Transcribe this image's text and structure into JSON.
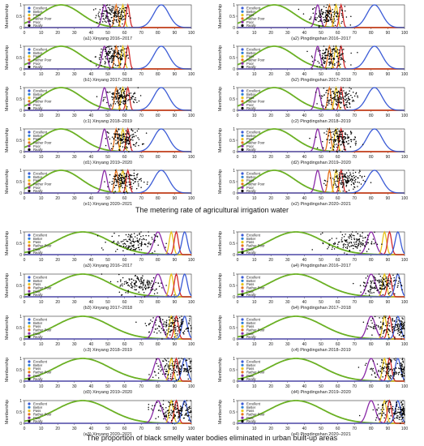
{
  "sections": [
    {
      "title": "The metering rate of agricultural irrigation water",
      "panels": [
        {
          "label": "(a1) Xinyang 2016–2017",
          "cloud": 53
        },
        {
          "label": "(a2) Pingdingshan 2016–2017",
          "cloud": 54
        },
        {
          "label": "(b1) Xinyang 2017–2018",
          "cloud": 53
        },
        {
          "label": "(b2) Pingdingshan 2017–2018",
          "cloud": 56
        },
        {
          "label": "(c1) Xinyang 2018–2019",
          "cloud": 58
        },
        {
          "label": "(c2) Pingdingshan 2018–2019",
          "cloud": 60
        },
        {
          "label": "(d1) Xinyang 2019–2020",
          "cloud": 60
        },
        {
          "label": "(d2) Pingdingshan 2019–2020",
          "cloud": 62
        },
        {
          "label": "(e1) Xinyang 2020–2021",
          "cloud": 60
        },
        {
          "label": "(e2) Pingdingshan 2020–2021",
          "cloud": 65
        }
      ]
    },
    {
      "title": "The proportion of black smelly water bodies eliminated in urban built-up areas",
      "panels": [
        {
          "label": "(a3) Xinyang 2016–2017",
          "cloud": 65
        },
        {
          "label": "(a4) Pingdingshan 2016–2017",
          "cloud": 68
        },
        {
          "label": "(b3) Xinyang 2017–2018",
          "cloud": 70
        },
        {
          "label": "(b4) Pingdingshan 2017–2018",
          "cloud": 86
        },
        {
          "label": "(c3) Xinyang 2018–2019",
          "cloud": 88
        },
        {
          "label": "(c4) Pingdingshan 2018–2019",
          "cloud": 93
        },
        {
          "label": "(d3) Xinyang 2019–2020",
          "cloud": 92
        },
        {
          "label": "(d4) Pingdingshan 2019–2020",
          "cloud": 94
        },
        {
          "label": "(e3) Xinyang 2020–2021",
          "cloud": 91
        },
        {
          "label": "(e4) Pingdingshan 2020–2021",
          "cloud": 95
        }
      ]
    }
  ],
  "chart_data": {
    "type": "line",
    "ylabel": "Membership",
    "xlim": [
      0,
      100
    ],
    "ylim": [
      0,
      1
    ],
    "x_ticks": [
      0,
      10,
      20,
      30,
      40,
      50,
      60,
      70,
      80,
      90,
      100
    ],
    "y_ticks": [
      0,
      0.5,
      1
    ],
    "legend": [
      {
        "name": "Excellent",
        "color": "#3b5bd6"
      },
      {
        "name": "Better",
        "color": "#2a7fd4"
      },
      {
        "name": "Pass",
        "color": "#e8c41a"
      },
      {
        "name": "Rather Poor",
        "color": "#e6721c"
      },
      {
        "name": "Poor",
        "color": "#8a2aa8"
      },
      {
        "name": "Really",
        "color": "#000000"
      }
    ],
    "curves": {
      "section1": [
        {
          "color": "#6ab023",
          "center": 22,
          "sigma": 12
        },
        {
          "color": "#8a2aa8",
          "center": 48,
          "sigma": 1.5
        },
        {
          "color": "#e6721c",
          "center": 55,
          "sigma": 1.0
        },
        {
          "color": "#e8c41a",
          "center": 59,
          "sigma": 1.0
        },
        {
          "color": "#d42a2a",
          "center": 62,
          "sigma": 1.0
        },
        {
          "color": "#3b5bd6",
          "center": 82,
          "sigma": 4.5
        }
      ],
      "section2": [
        {
          "color": "#6ab023",
          "center": 35,
          "sigma": 16
        },
        {
          "color": "#8a2aa8",
          "center": 80,
          "sigma": 2.5
        },
        {
          "color": "#e8c41a",
          "center": 88,
          "sigma": 1.2
        },
        {
          "color": "#d42a2a",
          "center": 91,
          "sigma": 1.2
        },
        {
          "color": "#3b5bd6",
          "center": 96,
          "sigma": 1.6
        }
      ]
    }
  }
}
